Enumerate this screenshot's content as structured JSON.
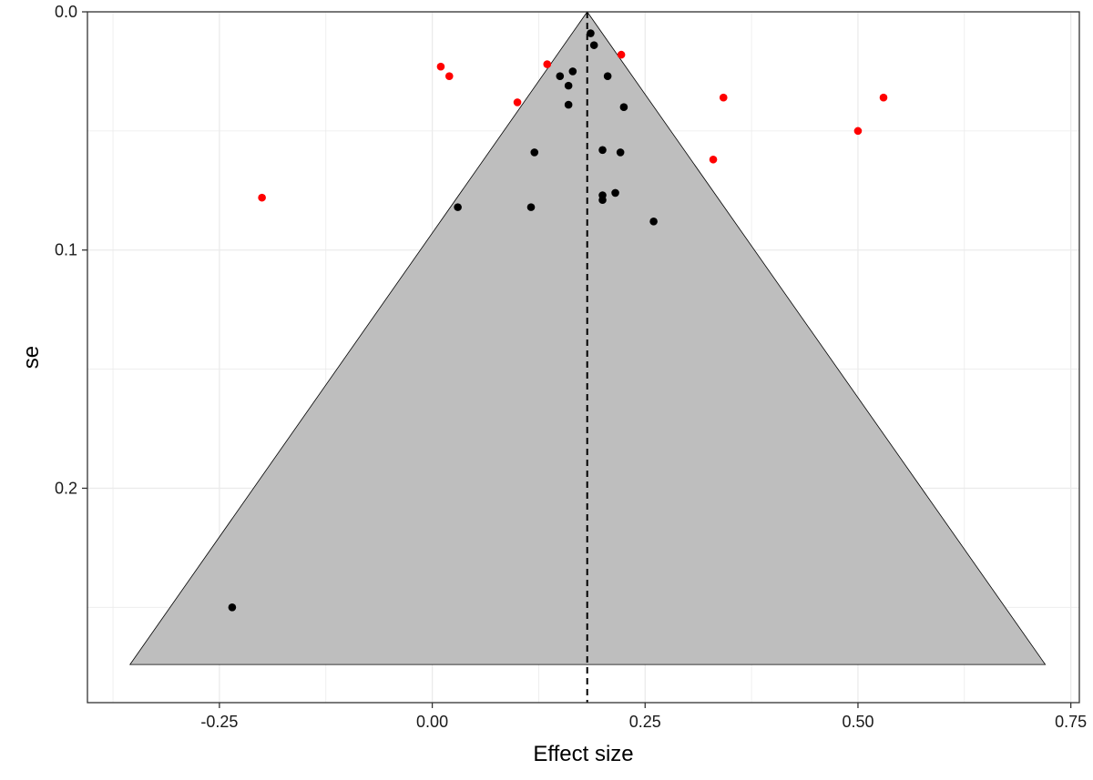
{
  "chart_data": {
    "type": "scatter",
    "subtype": "funnel plot",
    "title": "",
    "xlabel": "Effect size",
    "ylabel": "se",
    "xlim": [
      -0.405,
      0.76
    ],
    "ylim": [
      0.0,
      0.29
    ],
    "y_axis_reversed": true,
    "x_ticks": [
      -0.25,
      0.0,
      0.25,
      0.5,
      0.75
    ],
    "x_tick_labels": [
      "-0.25",
      "0.00",
      "0.25",
      "0.50",
      "0.75"
    ],
    "y_ticks": [
      0.0,
      0.1,
      0.2
    ],
    "y_tick_labels": [
      "0.0",
      "0.1",
      "0.2"
    ],
    "grid": true,
    "legend": "none",
    "reference_line": {
      "x": 0.182,
      "style": "dashed",
      "color": "#000000"
    },
    "funnel": {
      "apex": [
        0.182,
        0.0
      ],
      "base_left": [
        -0.355,
        0.274
      ],
      "base_right": [
        0.72,
        0.274
      ],
      "fill": "#bebebe",
      "stroke": "#000000"
    },
    "colors": {
      "inside": "#000000",
      "outside": "#ff0000",
      "grid": "#ebebeb",
      "panel_border": "#333333"
    },
    "points": [
      {
        "x": 0.186,
        "y": 0.009,
        "group": "inside"
      },
      {
        "x": 0.19,
        "y": 0.014,
        "group": "inside"
      },
      {
        "x": 0.165,
        "y": 0.025,
        "group": "inside"
      },
      {
        "x": 0.15,
        "y": 0.027,
        "group": "inside"
      },
      {
        "x": 0.206,
        "y": 0.027,
        "group": "inside"
      },
      {
        "x": 0.16,
        "y": 0.031,
        "group": "inside"
      },
      {
        "x": 0.16,
        "y": 0.039,
        "group": "inside"
      },
      {
        "x": 0.225,
        "y": 0.04,
        "group": "inside"
      },
      {
        "x": 0.12,
        "y": 0.059,
        "group": "inside"
      },
      {
        "x": 0.2,
        "y": 0.058,
        "group": "inside"
      },
      {
        "x": 0.221,
        "y": 0.059,
        "group": "inside"
      },
      {
        "x": 0.215,
        "y": 0.076,
        "group": "inside"
      },
      {
        "x": 0.2,
        "y": 0.077,
        "group": "inside"
      },
      {
        "x": 0.2,
        "y": 0.079,
        "group": "inside"
      },
      {
        "x": 0.03,
        "y": 0.082,
        "group": "inside"
      },
      {
        "x": 0.116,
        "y": 0.082,
        "group": "inside"
      },
      {
        "x": 0.26,
        "y": 0.088,
        "group": "inside"
      },
      {
        "x": -0.235,
        "y": 0.25,
        "group": "inside"
      },
      {
        "x": 0.222,
        "y": 0.018,
        "group": "outside"
      },
      {
        "x": 0.135,
        "y": 0.022,
        "group": "outside"
      },
      {
        "x": 0.01,
        "y": 0.023,
        "group": "outside"
      },
      {
        "x": 0.02,
        "y": 0.027,
        "group": "outside"
      },
      {
        "x": 0.1,
        "y": 0.038,
        "group": "outside"
      },
      {
        "x": 0.342,
        "y": 0.036,
        "group": "outside"
      },
      {
        "x": 0.53,
        "y": 0.036,
        "group": "outside"
      },
      {
        "x": 0.5,
        "y": 0.05,
        "group": "outside"
      },
      {
        "x": 0.33,
        "y": 0.062,
        "group": "outside"
      },
      {
        "x": -0.2,
        "y": 0.078,
        "group": "outside"
      }
    ]
  }
}
